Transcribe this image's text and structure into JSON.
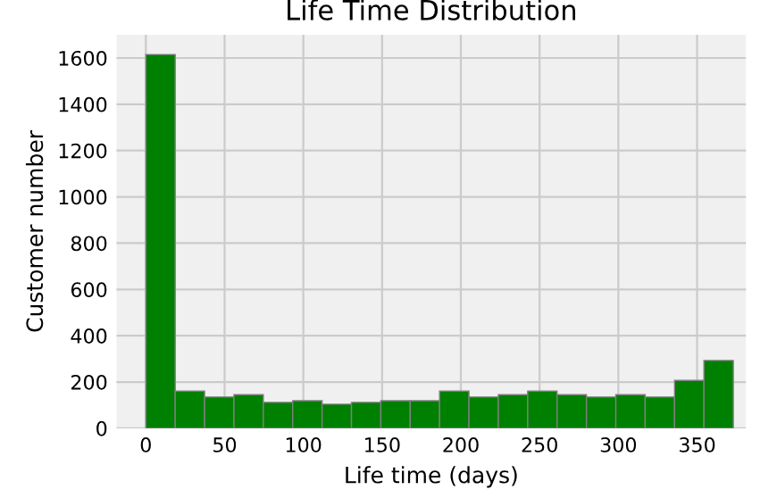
{
  "chart_data": {
    "type": "histogram",
    "title": "Life Time Distribution",
    "xlabel": "Life time (days)",
    "ylabel": "Customer number",
    "bins": [
      0,
      18.65,
      37.3,
      55.95,
      74.6,
      93.25,
      111.9,
      130.55,
      149.2,
      167.85,
      186.5,
      205.15,
      223.8,
      242.45,
      261.1,
      279.75,
      298.4,
      317.05,
      335.7,
      354.35,
      373
    ],
    "values": [
      1615,
      161,
      135,
      145,
      112,
      119,
      104,
      112,
      119,
      119,
      161,
      135,
      145,
      161,
      145,
      135,
      145,
      135,
      207,
      293
    ],
    "color": "#008000",
    "xlim": [
      -18.6,
      381
    ],
    "ylim": [
      0,
      1700
    ],
    "xticks": [
      0,
      50,
      100,
      150,
      200,
      250,
      300,
      350
    ],
    "yticks": [
      0,
      200,
      400,
      600,
      800,
      1000,
      1200,
      1400,
      1600
    ],
    "grid": true
  }
}
